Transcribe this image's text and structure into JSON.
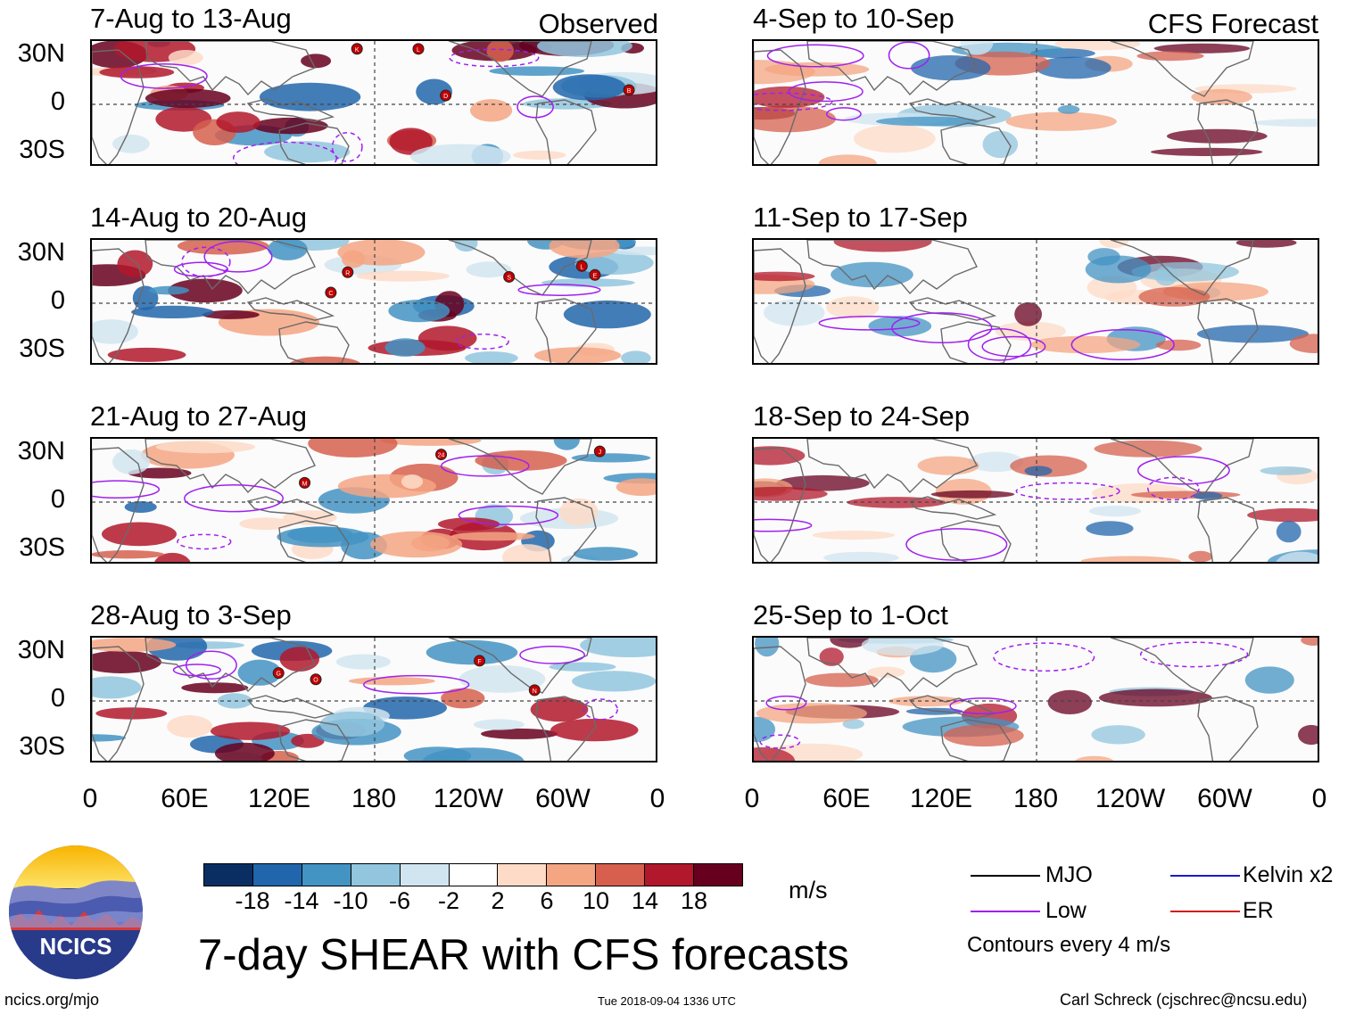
{
  "left_column": {
    "header_tag": "Observed",
    "panels": [
      {
        "title": "7-Aug to 13-Aug",
        "storms": [
          "B",
          "L",
          "K",
          "D"
        ]
      },
      {
        "title": "14-Aug to 20-Aug",
        "storms": [
          "R",
          "S",
          "C",
          "L",
          "E"
        ]
      },
      {
        "title": "21-Aug to 27-Aug",
        "storms": [
          "24",
          "J",
          "M"
        ]
      },
      {
        "title": "28-Aug to 3-Sep",
        "storms": [
          "N",
          "O",
          "G",
          "F"
        ]
      }
    ]
  },
  "right_column": {
    "header_tag": "CFS Forecast",
    "panels": [
      {
        "title": "4-Sep to 10-Sep"
      },
      {
        "title": "11-Sep to 17-Sep"
      },
      {
        "title": "18-Sep to 24-Sep"
      },
      {
        "title": "25-Sep to 1-Oct"
      }
    ]
  },
  "lat_labels": [
    "30N",
    "0",
    "30S"
  ],
  "lon_labels": [
    "0",
    "60E",
    "120E",
    "180",
    "120W",
    "60W",
    "0"
  ],
  "colorbar": {
    "unit": "m/s",
    "tick_labels": [
      "-18",
      "-14",
      "-10",
      "-6",
      "-2",
      "2",
      "6",
      "10",
      "14",
      "18"
    ],
    "colors": [
      "#0b2e62",
      "#2166ac",
      "#4393c3",
      "#92c5de",
      "#d1e5f0",
      "#ffffff",
      "#fddbc7",
      "#f4a582",
      "#d6604d",
      "#b2182b",
      "#67001f"
    ]
  },
  "legend": {
    "items": [
      {
        "label": "MJO",
        "color": "#000000"
      },
      {
        "label": "Kelvin x2",
        "color": "#1a1acc"
      },
      {
        "label": "Low",
        "color": "#a020f0"
      },
      {
        "label": "ER",
        "color": "#d11a1a"
      }
    ],
    "note": "Contours every 4 m/s"
  },
  "main_title": "7-day SHEAR with CFS forecasts",
  "logo_text": "NCICS",
  "footer": {
    "url": "ncics.org/mjo",
    "timestamp": "Tue 2018-09-04 1336 UTC",
    "author": "Carl Schreck (cjschrec@ncsu.edu)"
  }
}
